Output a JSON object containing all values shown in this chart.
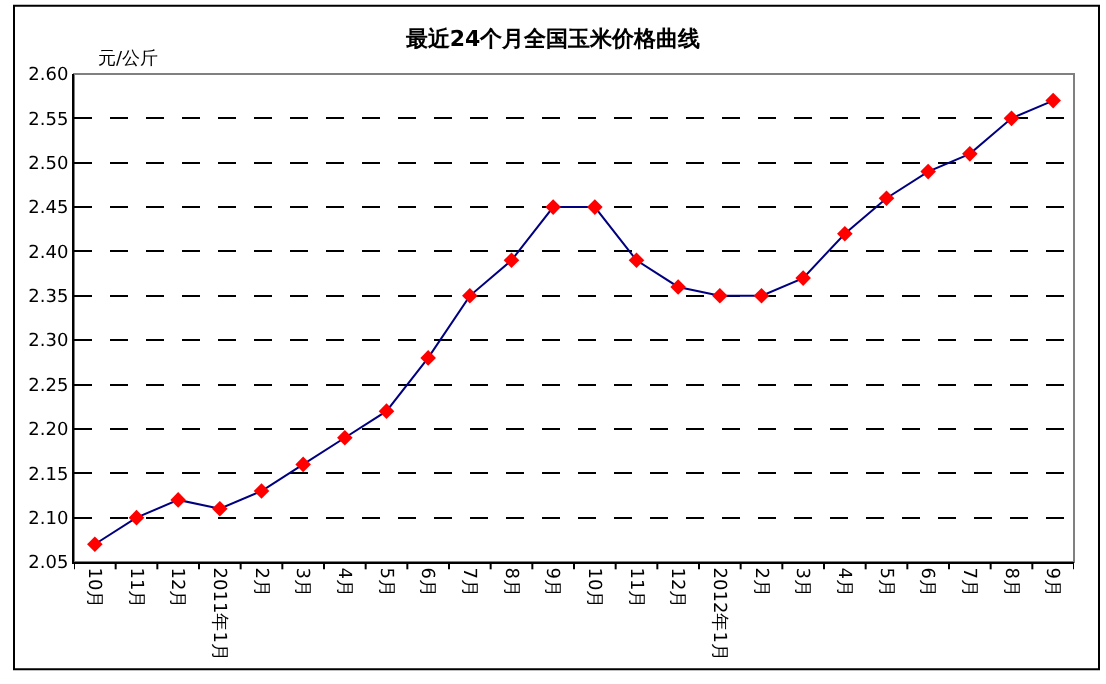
{
  "chart_data": {
    "type": "line",
    "title": "最近24个月全国玉米价格曲线",
    "ylabel": "元/公斤",
    "categories": [
      "10月",
      "11月",
      "12月",
      "2011年1月",
      "2月",
      "3月",
      "4月",
      "5月",
      "6月",
      "7月",
      "8月",
      "9月",
      "10月",
      "11月",
      "12月",
      "2012年1月",
      "2月",
      "3月",
      "4月",
      "5月",
      "6月",
      "7月",
      "8月",
      "9月"
    ],
    "series": [
      {
        "color": "#000080",
        "colors": [
          "#ff0000",
          "#ff0000",
          "#ff0000",
          "#ff0000",
          "#ff0000",
          "#ff0000",
          "#ff0000",
          "#ff0000",
          "#ff0000",
          "#ff0000",
          "#ff0000",
          "#ff0000",
          "#ff0000",
          "#ff0000",
          "#ff0000",
          "#ff0000",
          "#ff0000",
          "#ff0000",
          "#ff0000",
          "#ff0000",
          "#ff0000",
          "#ff0000",
          "#ff0000",
          "#ff0000"
        ],
        "values": [
          2.07,
          2.1,
          2.12,
          2.11,
          2.13,
          2.16,
          2.19,
          2.22,
          2.28,
          2.35,
          2.39,
          2.45,
          2.45,
          2.39,
          2.36,
          2.35,
          2.35,
          2.37,
          2.42,
          2.46,
          2.49,
          2.51,
          2.55,
          2.57
        ]
      }
    ],
    "ylim": [
      2.05,
      2.6
    ],
    "yticks": [
      {
        "value": 2.05,
        "label": "2.05"
      },
      {
        "value": 2.1,
        "label": "2.10"
      },
      {
        "value": 2.15,
        "label": "2.15"
      },
      {
        "value": 2.2,
        "label": "2.20"
      },
      {
        "value": 2.25,
        "label": "2.25"
      },
      {
        "value": 2.3,
        "label": "2.30"
      },
      {
        "value": 2.35,
        "label": "2.35"
      },
      {
        "value": 2.4,
        "label": "2.40"
      },
      {
        "value": 2.45,
        "label": "2.45"
      },
      {
        "value": 2.5,
        "label": "2.50"
      },
      {
        "value": 2.55,
        "label": "2.55"
      },
      {
        "value": 2.6,
        "label": "2.60"
      }
    ],
    "grid": "y",
    "marker": "diamond",
    "line_style": "solid"
  }
}
